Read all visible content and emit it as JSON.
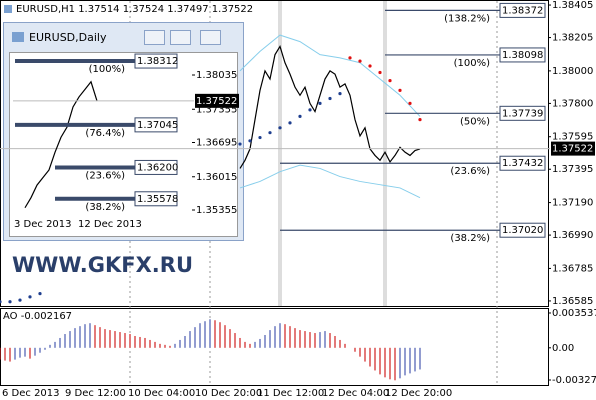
{
  "header": "EURUSD,H1  1.37514 1.37524 1.37497 1.37522",
  "watermark": "WWW.GKFX.RU",
  "chart_data": [
    {
      "type": "line",
      "ylim": [
        1.3656,
        1.38436
      ],
      "xlim": [
        0,
        109.6
      ],
      "yticks": [
        1.38405,
        1.38205,
        {
          "value": 1.38,
          "label": "1.38000"
        },
        {
          "value": 1.378,
          "label": "1.37800"
        },
        1.37595,
        1.37395,
        {
          "value": 1.3719,
          "label": "1.37190"
        },
        {
          "value": 1.3699,
          "label": "1.36990"
        },
        1.36785,
        1.36585
      ],
      "current_price": 1.37522,
      "series": [
        {
          "style": "line",
          "color": "#000000",
          "x": [
            48,
            49,
            50,
            51,
            52,
            53,
            54,
            55,
            56,
            57,
            58,
            59,
            60,
            61,
            62,
            63,
            64,
            65,
            66,
            67,
            68,
            69,
            70,
            71,
            72,
            73,
            74,
            75,
            76,
            77,
            78,
            79,
            80,
            81,
            82,
            83,
            84
          ],
          "values": [
            1.374,
            1.3745,
            1.3752,
            1.377,
            1.3788,
            1.38,
            1.3795,
            1.381,
            1.3815,
            1.3805,
            1.3798,
            1.379,
            1.3785,
            1.379,
            1.378,
            1.3775,
            1.3785,
            1.3795,
            1.38,
            1.3798,
            1.379,
            1.3792,
            1.3785,
            1.377,
            1.376,
            1.3765,
            1.3752,
            1.3748,
            1.3745,
            1.375,
            1.3744,
            1.3748,
            1.3753,
            1.375,
            1.3748,
            1.3751,
            1.3752
          ]
        },
        {
          "style": "line",
          "color": "#87ceeb",
          "x": [
            48,
            52,
            56,
            60,
            64,
            68,
            72,
            76,
            80,
            84
          ],
          "values": [
            1.38,
            1.3812,
            1.3822,
            1.3818,
            1.381,
            1.3808,
            1.3805,
            1.3795,
            1.3785,
            1.3772
          ]
        },
        {
          "style": "line",
          "color": "#87ceeb",
          "x": [
            48,
            52,
            56,
            60,
            64,
            68,
            72,
            76,
            80,
            84
          ],
          "values": [
            1.3728,
            1.3732,
            1.3738,
            1.3742,
            1.374,
            1.3735,
            1.3732,
            1.373,
            1.3728,
            1.3722
          ]
        },
        {
          "style": "dots",
          "color": "#1f3f8f",
          "x": [
            0,
            2,
            4,
            6,
            8,
            48,
            50,
            52,
            54,
            56,
            58,
            60,
            62,
            64,
            66,
            68
          ],
          "values": [
            1.3658,
            1.3658,
            1.3659,
            1.3661,
            1.3663,
            1.3755,
            1.3757,
            1.3759,
            1.3762,
            1.3765,
            1.3768,
            1.3772,
            1.3776,
            1.378,
            1.3783,
            1.3786
          ]
        },
        {
          "style": "dots",
          "color": "#e01010",
          "x": [
            70,
            72,
            74,
            76,
            78,
            80,
            82,
            84
          ],
          "values": [
            1.3808,
            1.3806,
            1.3803,
            1.3799,
            1.3794,
            1.3788,
            1.378,
            1.377
          ]
        }
      ],
      "fib_levels": [
        {
          "name": "(138.2%)",
          "price": 1.38372
        },
        {
          "name": "(100%)",
          "price": {
            "value": 1.38098,
            "label": "1.38098"
          }
        },
        {
          "name": "(50%)",
          "price": 1.37739
        },
        {
          "name": "(23.6%)",
          "price": 1.37432
        },
        {
          "name": "(38.2%)",
          "price": {
            "value": 1.3702,
            "label": "1.37020"
          }
        }
      ]
    },
    {
      "type": "bar",
      "title": "AO -0.002167",
      "ylim": [
        -0.00388,
        0.00384
      ],
      "xlim": [
        0,
        109.6
      ],
      "yticks": [
        0.003537,
        {
          "value": 0,
          "label": "0.00"
        },
        -0.003271
      ],
      "up_color": "#4a5bb0",
      "down_color": "#d02020",
      "x": [
        0,
        1,
        2,
        3,
        4,
        5,
        6,
        7,
        8,
        9,
        10,
        11,
        12,
        13,
        14,
        15,
        16,
        17,
        18,
        19,
        20,
        21,
        22,
        23,
        24,
        25,
        26,
        27,
        28,
        29,
        30,
        31,
        32,
        33,
        34,
        35,
        36,
        37,
        38,
        39,
        40,
        41,
        42,
        43,
        44,
        45,
        46,
        47,
        48,
        49,
        50,
        51,
        52,
        53,
        54,
        55,
        56,
        57,
        58,
        59,
        60,
        61,
        62,
        63,
        64,
        65,
        66,
        67,
        68,
        69,
        70,
        71,
        72,
        73,
        74,
        75,
        76,
        77,
        78,
        79,
        80,
        81,
        82,
        83,
        84
      ],
      "values": [
        -0.0012,
        -0.0013,
        -0.0014,
        -0.0012,
        -0.001,
        -0.0009,
        -0.0011,
        -0.0008,
        -0.0005,
        -0.0002,
        0.0003,
        0.0006,
        0.001,
        0.0014,
        0.0017,
        0.002,
        0.0022,
        0.0024,
        0.0025,
        0.0023,
        0.0021,
        0.0019,
        0.0018,
        0.0017,
        0.0016,
        0.0015,
        0.0014,
        0.0012,
        0.0011,
        0.001,
        0.0008,
        0.0006,
        0.0004,
        0.0003,
        0.0002,
        0.0004,
        0.0008,
        0.0012,
        0.0017,
        0.0021,
        0.0025,
        0.0027,
        0.0029,
        0.0028,
        0.0026,
        0.0023,
        0.0019,
        0.0015,
        0.001,
        0.0006,
        0.0004,
        0.0006,
        0.0009,
        0.0013,
        0.0018,
        0.0022,
        0.0025,
        0.0024,
        0.0022,
        0.002,
        0.0018,
        0.0017,
        0.0016,
        0.0015,
        0.0016,
        0.0017,
        0.0015,
        0.0012,
        0.0008,
        0.0004,
        0,
        -0.0004,
        -0.0009,
        -0.0014,
        -0.0019,
        -0.0023,
        -0.0027,
        -0.003,
        -0.0032,
        -0.0033,
        -0.0031,
        -0.0028,
        -0.0026,
        -0.0024,
        -0.0022
      ],
      "x_labels": [
        "6 Dec 2013",
        "9 Dec 12:00",
        "10 Dec 04:00",
        "10 Dec 20:00",
        "11 Dec 12:00",
        "12 Dec 04:00",
        "12 Dec 20:00"
      ]
    },
    {
      "type": "line",
      "title": "EURUSD,Daily",
      "ylim": [
        1.35256,
        1.38432
      ],
      "xlim": [
        0,
        30
      ],
      "yticks": [
        1.38035,
        1.37355,
        1.36695,
        1.36015,
        1.35355
      ],
      "current_price": 1.37522,
      "series": [
        {
          "style": "line",
          "color": "#000000",
          "x": [
            2,
            3,
            4,
            5,
            6,
            7,
            8,
            9,
            10,
            11,
            12,
            13,
            14
          ],
          "values": [
            1.354,
            1.356,
            1.3585,
            1.36,
            1.3615,
            1.365,
            1.368,
            1.37,
            1.374,
            1.376,
            1.3775,
            1.379,
            1.3752
          ]
        }
      ],
      "fib_levels": [
        {
          "name": "(100%)",
          "price": 1.38312
        },
        {
          "name": "(76.4%)",
          "price": 1.37045
        },
        {
          "name": "(23.6%)",
          "price": {
            "value": 1.362,
            "label": "1.36200"
          }
        },
        {
          "name": "(38.2%)",
          "price": 1.35578
        }
      ],
      "x_labels": [
        "3 Dec 2013",
        "12 Dec 2013"
      ]
    }
  ]
}
